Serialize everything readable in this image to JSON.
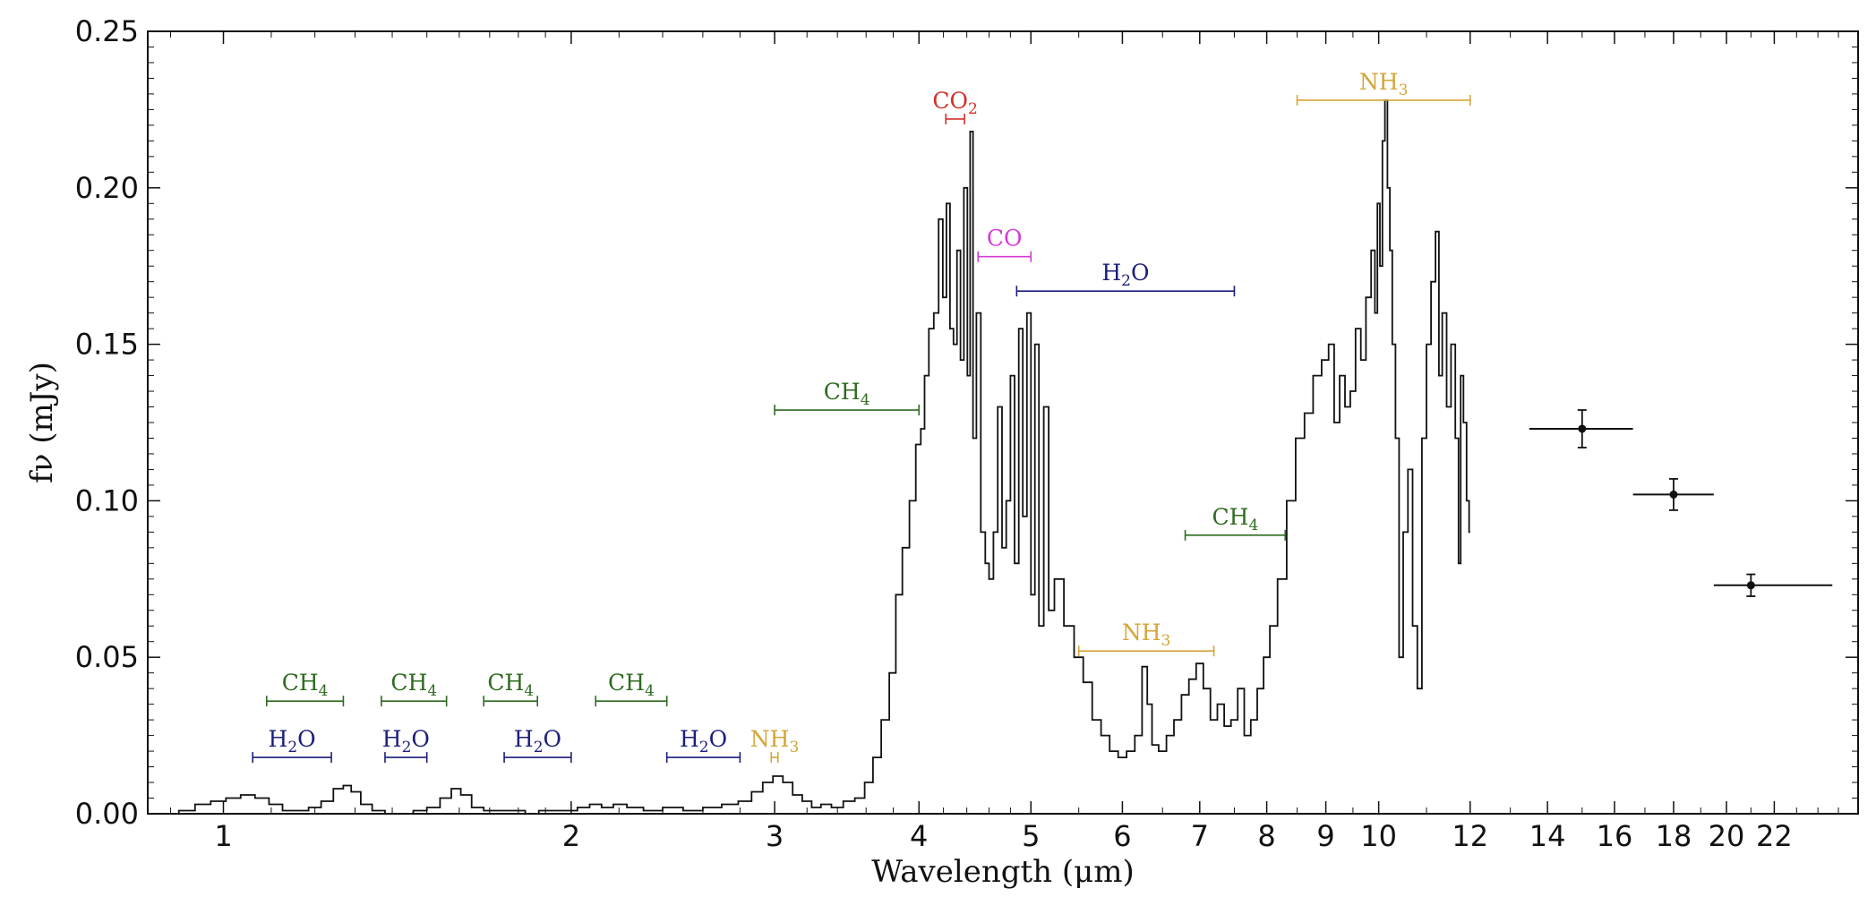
{
  "chart_data": {
    "type": "line",
    "xlabel": "Wavelength (μm)",
    "ylabel": "fν (mJy)",
    "xscale": "log",
    "xlim": [
      0.86,
      26
    ],
    "ylim": [
      0,
      0.25
    ],
    "grid": false,
    "x_ticks": [
      1,
      2,
      3,
      4,
      5,
      6,
      7,
      8,
      9,
      10,
      12,
      14,
      16,
      18,
      20,
      22
    ],
    "y_ticks": [
      "0.00",
      "0.05",
      "0.10",
      "0.15",
      "0.20",
      "0.25"
    ],
    "spectrum": [
      [
        0.9,
        0.0
      ],
      [
        0.93,
        0.001
      ],
      [
        0.96,
        0.003
      ],
      [
        0.99,
        0.004
      ],
      [
        1.02,
        0.005
      ],
      [
        1.05,
        0.006
      ],
      [
        1.08,
        0.005
      ],
      [
        1.11,
        0.003
      ],
      [
        1.14,
        0.001
      ],
      [
        1.17,
        0.001
      ],
      [
        1.2,
        0.002
      ],
      [
        1.23,
        0.004
      ],
      [
        1.26,
        0.008
      ],
      [
        1.28,
        0.009
      ],
      [
        1.3,
        0.007
      ],
      [
        1.33,
        0.003
      ],
      [
        1.36,
        0.001
      ],
      [
        1.4,
        0.0
      ],
      [
        1.44,
        0.0
      ],
      [
        1.48,
        0.001
      ],
      [
        1.52,
        0.002
      ],
      [
        1.56,
        0.005
      ],
      [
        1.59,
        0.008
      ],
      [
        1.62,
        0.006
      ],
      [
        1.66,
        0.002
      ],
      [
        1.7,
        0.001
      ],
      [
        1.75,
        0.001
      ],
      [
        1.8,
        0.001
      ],
      [
        1.85,
        0.0
      ],
      [
        1.9,
        0.001
      ],
      [
        1.95,
        0.001
      ],
      [
        2.0,
        0.001
      ],
      [
        2.05,
        0.002
      ],
      [
        2.1,
        0.003
      ],
      [
        2.15,
        0.002
      ],
      [
        2.2,
        0.003
      ],
      [
        2.27,
        0.002
      ],
      [
        2.35,
        0.001
      ],
      [
        2.45,
        0.002
      ],
      [
        2.55,
        0.001
      ],
      [
        2.65,
        0.002
      ],
      [
        2.75,
        0.003
      ],
      [
        2.83,
        0.004
      ],
      [
        2.9,
        0.007
      ],
      [
        2.96,
        0.01
      ],
      [
        3.02,
        0.012
      ],
      [
        3.08,
        0.01
      ],
      [
        3.14,
        0.006
      ],
      [
        3.2,
        0.004
      ],
      [
        3.26,
        0.002
      ],
      [
        3.32,
        0.003
      ],
      [
        3.4,
        0.002
      ],
      [
        3.48,
        0.004
      ],
      [
        3.56,
        0.005
      ],
      [
        3.62,
        0.01
      ],
      [
        3.68,
        0.018
      ],
      [
        3.74,
        0.03
      ],
      [
        3.8,
        0.045
      ],
      [
        3.84,
        0.07
      ],
      [
        3.9,
        0.085
      ],
      [
        3.95,
        0.1
      ],
      [
        4.0,
        0.118
      ],
      [
        4.03,
        0.123
      ],
      [
        4.06,
        0.14
      ],
      [
        4.1,
        0.155
      ],
      [
        4.14,
        0.16
      ],
      [
        4.18,
        0.19
      ],
      [
        4.21,
        0.165
      ],
      [
        4.24,
        0.195
      ],
      [
        4.27,
        0.155
      ],
      [
        4.3,
        0.15
      ],
      [
        4.33,
        0.18
      ],
      [
        4.36,
        0.145
      ],
      [
        4.39,
        0.2
      ],
      [
        4.42,
        0.14
      ],
      [
        4.44,
        0.218
      ],
      [
        4.47,
        0.12
      ],
      [
        4.5,
        0.16
      ],
      [
        4.55,
        0.09
      ],
      [
        4.58,
        0.08
      ],
      [
        4.62,
        0.075
      ],
      [
        4.66,
        0.09
      ],
      [
        4.7,
        0.13
      ],
      [
        4.74,
        0.085
      ],
      [
        4.78,
        0.1
      ],
      [
        4.82,
        0.14
      ],
      [
        4.86,
        0.08
      ],
      [
        4.9,
        0.155
      ],
      [
        4.94,
        0.095
      ],
      [
        4.98,
        0.16
      ],
      [
        5.02,
        0.07
      ],
      [
        5.06,
        0.15
      ],
      [
        5.1,
        0.06
      ],
      [
        5.16,
        0.13
      ],
      [
        5.2,
        0.065
      ],
      [
        5.28,
        0.075
      ],
      [
        5.4,
        0.06
      ],
      [
        5.5,
        0.05
      ],
      [
        5.6,
        0.042
      ],
      [
        5.7,
        0.03
      ],
      [
        5.8,
        0.025
      ],
      [
        5.9,
        0.02
      ],
      [
        6.0,
        0.018
      ],
      [
        6.1,
        0.02
      ],
      [
        6.2,
        0.025
      ],
      [
        6.28,
        0.047
      ],
      [
        6.33,
        0.035
      ],
      [
        6.4,
        0.022
      ],
      [
        6.5,
        0.02
      ],
      [
        6.6,
        0.025
      ],
      [
        6.7,
        0.03
      ],
      [
        6.8,
        0.038
      ],
      [
        6.9,
        0.043
      ],
      [
        7.0,
        0.048
      ],
      [
        7.1,
        0.04
      ],
      [
        7.2,
        0.03
      ],
      [
        7.3,
        0.035
      ],
      [
        7.4,
        0.028
      ],
      [
        7.5,
        0.03
      ],
      [
        7.6,
        0.04
      ],
      [
        7.7,
        0.025
      ],
      [
        7.8,
        0.03
      ],
      [
        7.9,
        0.04
      ],
      [
        8.0,
        0.05
      ],
      [
        8.1,
        0.06
      ],
      [
        8.25,
        0.075
      ],
      [
        8.4,
        0.1
      ],
      [
        8.55,
        0.12
      ],
      [
        8.7,
        0.128
      ],
      [
        8.85,
        0.14
      ],
      [
        9.0,
        0.145
      ],
      [
        9.1,
        0.15
      ],
      [
        9.2,
        0.125
      ],
      [
        9.3,
        0.14
      ],
      [
        9.4,
        0.13
      ],
      [
        9.5,
        0.135
      ],
      [
        9.6,
        0.155
      ],
      [
        9.7,
        0.145
      ],
      [
        9.8,
        0.165
      ],
      [
        9.9,
        0.18
      ],
      [
        9.95,
        0.16
      ],
      [
        10.0,
        0.195
      ],
      [
        10.05,
        0.175
      ],
      [
        10.1,
        0.215
      ],
      [
        10.15,
        0.228
      ],
      [
        10.2,
        0.2
      ],
      [
        10.25,
        0.18
      ],
      [
        10.3,
        0.15
      ],
      [
        10.38,
        0.12
      ],
      [
        10.45,
        0.05
      ],
      [
        10.55,
        0.09
      ],
      [
        10.65,
        0.11
      ],
      [
        10.75,
        0.06
      ],
      [
        10.85,
        0.04
      ],
      [
        10.95,
        0.12
      ],
      [
        11.05,
        0.15
      ],
      [
        11.15,
        0.17
      ],
      [
        11.25,
        0.186
      ],
      [
        11.3,
        0.14
      ],
      [
        11.4,
        0.16
      ],
      [
        11.5,
        0.13
      ],
      [
        11.6,
        0.15
      ],
      [
        11.7,
        0.12
      ],
      [
        11.75,
        0.08
      ],
      [
        11.8,
        0.14
      ],
      [
        11.88,
        0.125
      ],
      [
        11.95,
        0.1
      ],
      [
        12.0,
        0.09
      ]
    ],
    "photometry": [
      {
        "x": 15.0,
        "xerr": [
          13.5,
          16.6
        ],
        "y": 0.123,
        "yerr": 0.006
      },
      {
        "x": 18.0,
        "xerr": [
          16.6,
          19.5
        ],
        "y": 0.102,
        "yerr": 0.005
      },
      {
        "x": 21.0,
        "xerr": [
          19.5,
          24.7
        ],
        "y": 0.073,
        "yerr": 0.0035
      }
    ],
    "annotations": [
      {
        "label": "CH",
        "sub": "4",
        "color": "#2e6b20",
        "x0": 1.09,
        "x1": 1.27,
        "y": 0.036
      },
      {
        "label": "CH",
        "sub": "4",
        "color": "#2e6b20",
        "x0": 1.37,
        "x1": 1.56,
        "y": 0.036
      },
      {
        "label": "CH",
        "sub": "4",
        "color": "#2e6b20",
        "x0": 1.68,
        "x1": 1.87,
        "y": 0.036
      },
      {
        "label": "CH",
        "sub": "4",
        "color": "#2e6b20",
        "x0": 2.1,
        "x1": 2.42,
        "y": 0.036
      },
      {
        "label": "H",
        "sub": "2",
        "tail": "O",
        "color": "#1c1e7a",
        "x0": 1.06,
        "x1": 1.24,
        "y": 0.018
      },
      {
        "label": "H",
        "sub": "2",
        "tail": "O",
        "color": "#1c1e7a",
        "x0": 1.38,
        "x1": 1.5,
        "y": 0.018
      },
      {
        "label": "H",
        "sub": "2",
        "tail": "O",
        "color": "#1c1e7a",
        "x0": 1.75,
        "x1": 2.0,
        "y": 0.018
      },
      {
        "label": "H",
        "sub": "2",
        "tail": "O",
        "color": "#1c1e7a",
        "x0": 2.42,
        "x1": 2.8,
        "y": 0.018
      },
      {
        "label": "NH",
        "sub": "3",
        "color": "#d4a537",
        "x0": 2.98,
        "x1": 3.02,
        "y": 0.018
      },
      {
        "label": "CH",
        "sub": "4",
        "color": "#2e6b20",
        "x0": 3.0,
        "x1": 4.0,
        "y": 0.129
      },
      {
        "label": "CO",
        "sub": "2",
        "color": "#d1302b",
        "x0": 4.22,
        "x1": 4.38,
        "y": 0.222
      },
      {
        "label": "CO",
        "sub": "",
        "color": "#d63ad6",
        "x0": 4.5,
        "x1": 5.0,
        "y": 0.178
      },
      {
        "label": "H",
        "sub": "2",
        "tail": "O",
        "color": "#1c1e7a",
        "x0": 4.86,
        "x1": 7.5,
        "y": 0.167
      },
      {
        "label": "NH",
        "sub": "3",
        "color": "#d4a537",
        "x0": 5.5,
        "x1": 7.2,
        "y": 0.052
      },
      {
        "label": "CH",
        "sub": "4",
        "color": "#2e6b20",
        "x0": 6.8,
        "x1": 8.3,
        "y": 0.089
      },
      {
        "label": "NH",
        "sub": "3",
        "color": "#d4a537",
        "x0": 8.5,
        "x1": 12.0,
        "y": 0.228
      }
    ]
  }
}
